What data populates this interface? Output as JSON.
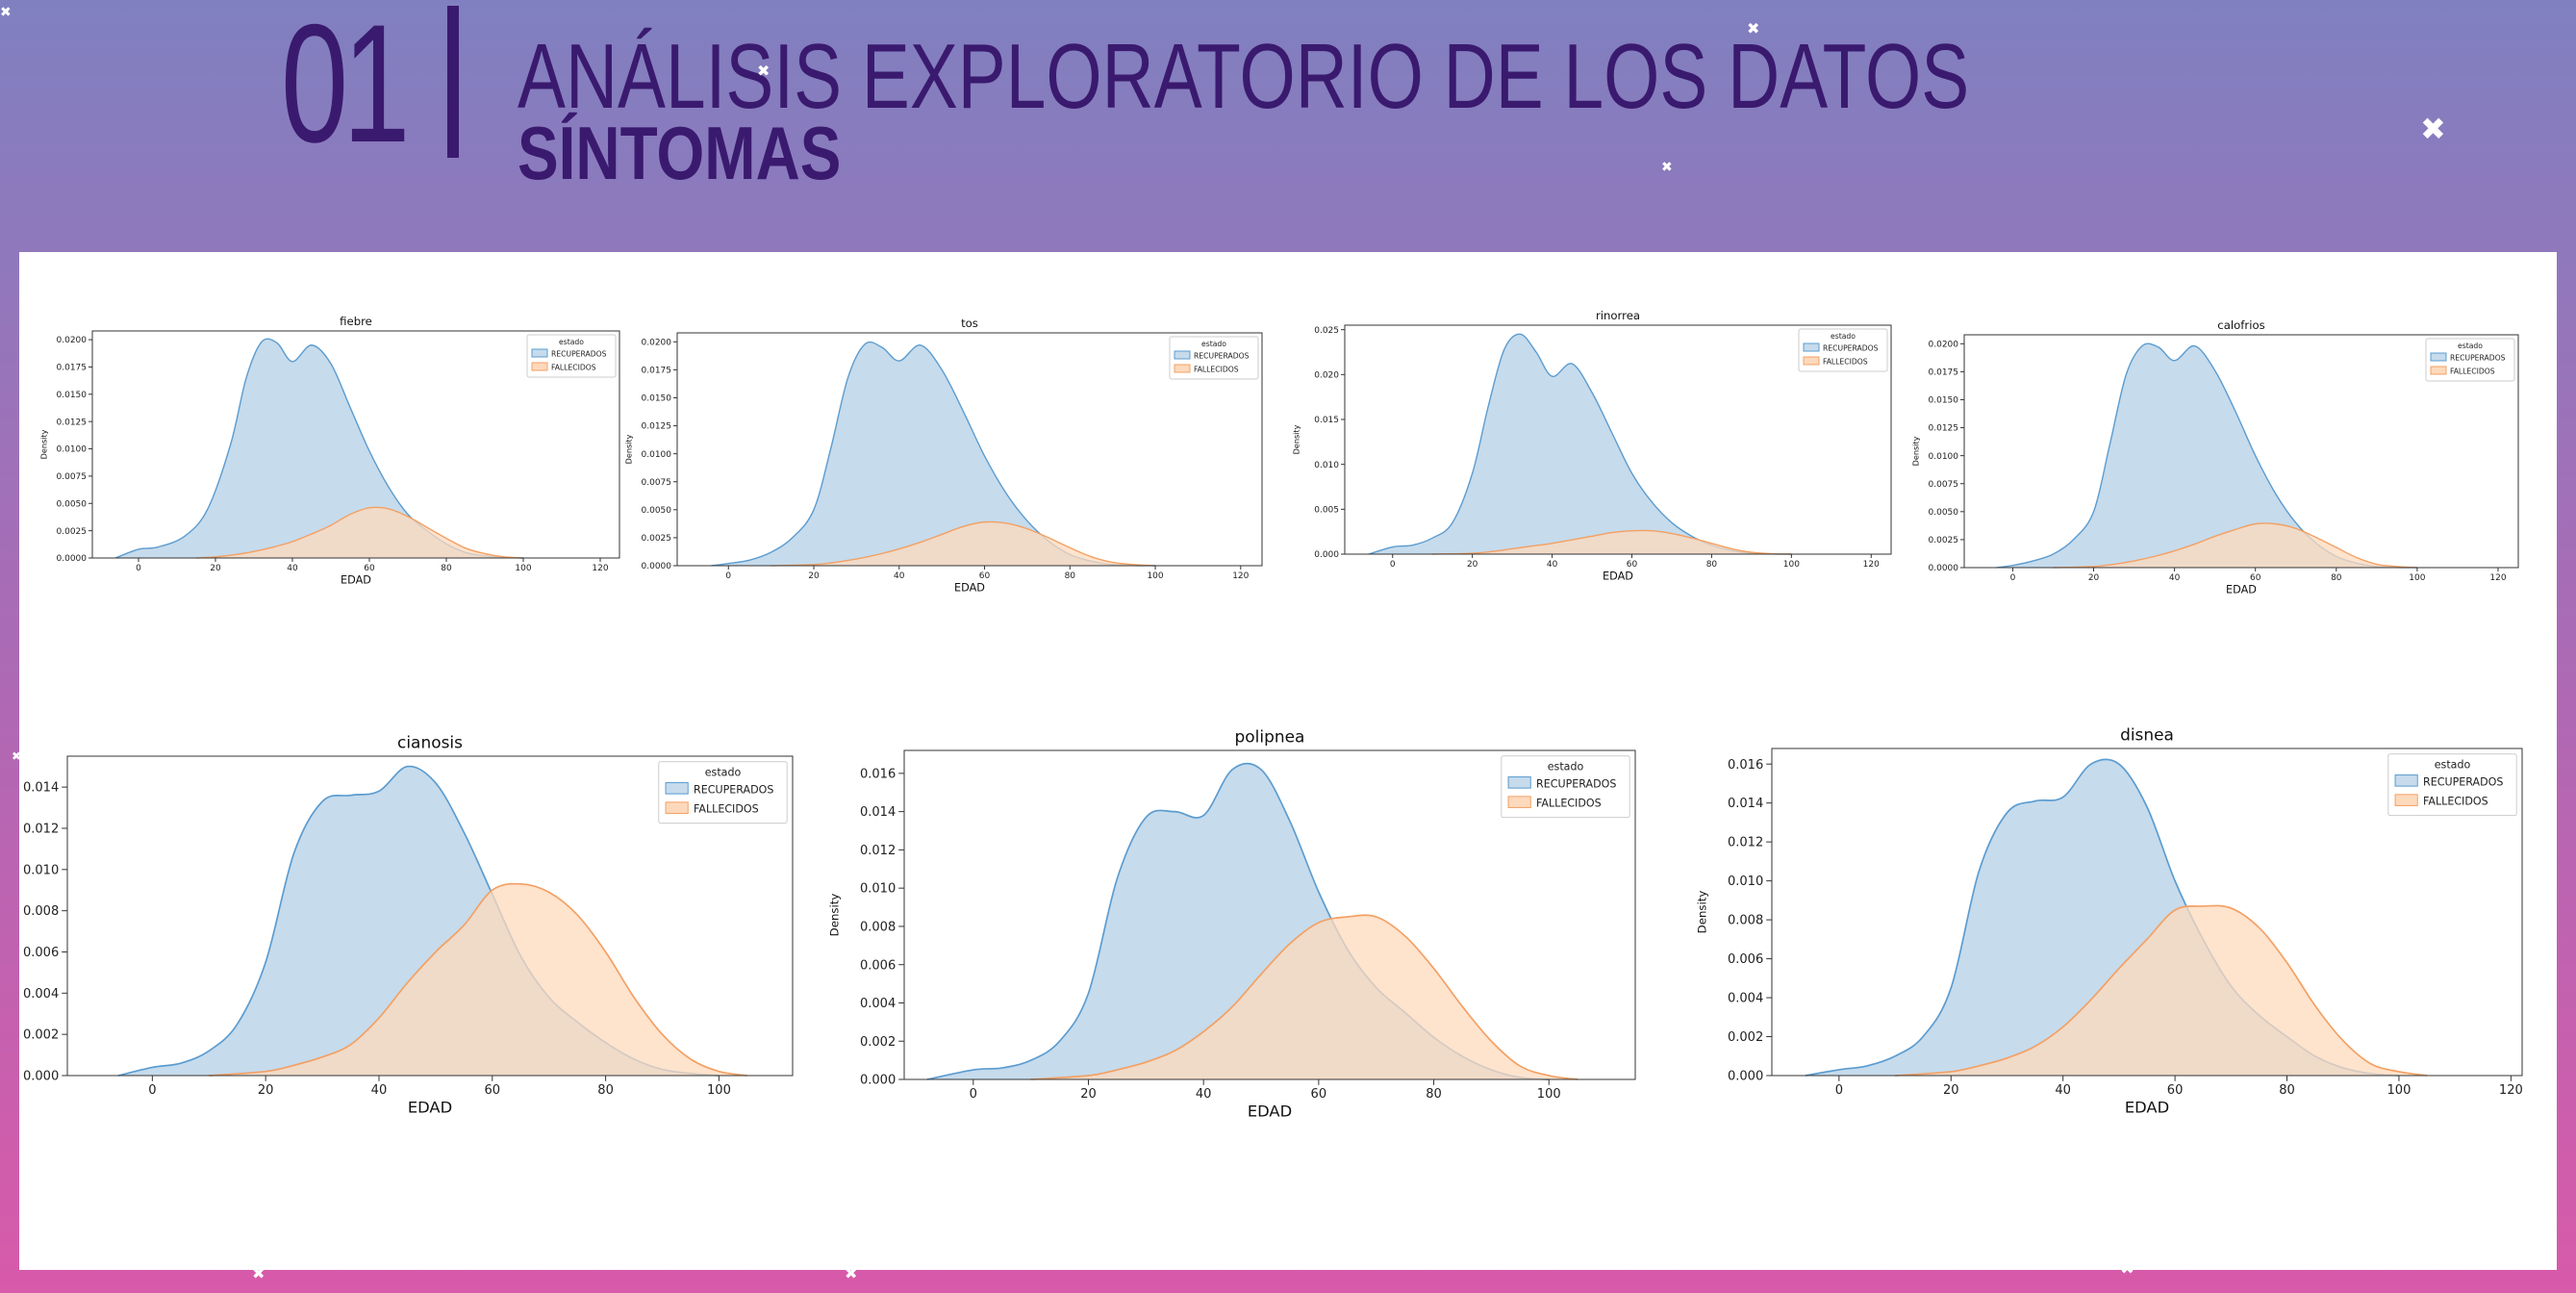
{
  "header": {
    "number": "01",
    "title": "ANÁLISIS EXPLORATORIO DE LOS DATOS",
    "subtitle": "SÍNTOMAS"
  },
  "colors": {
    "recuperados_fill": "#c6dbec",
    "recuperados_line": "#5b9cd0",
    "fallecidos_fill": "#fdd9bc",
    "fallecidos_line": "#f3a063",
    "overlap": "#c2bcb6",
    "title_color": "#3a1a6e"
  },
  "chart_data": [
    {
      "type": "area",
      "title": "fiebre",
      "xlabel": "EDAD",
      "ylabel": "Density",
      "xlim": [
        -12,
        125
      ],
      "ylim": [
        0,
        0.0208
      ],
      "xticks": [
        0,
        20,
        40,
        60,
        80,
        100,
        120
      ],
      "yticks": [
        0,
        0.0025,
        0.005,
        0.0075,
        0.01,
        0.0125,
        0.015,
        0.0175,
        0.02
      ],
      "ytick_labels": [
        "0.0000",
        "0.0025",
        "0.0050",
        "0.0075",
        "0.0100",
        "0.0125",
        "0.0150",
        "0.0175",
        "0.0200"
      ],
      "legend": {
        "title": "estado",
        "position": "top-right",
        "entries": [
          "RECUPERADOS",
          "FALLECIDOS"
        ]
      },
      "series": [
        {
          "name": "RECUPERADOS",
          "x": [
            -6,
            0,
            5,
            12,
            18,
            24,
            28,
            32,
            36,
            40,
            45,
            50,
            55,
            60,
            65,
            70,
            75,
            80,
            85,
            90,
            95,
            100
          ],
          "y": [
            0,
            0.0008,
            0.001,
            0.002,
            0.0045,
            0.0105,
            0.0165,
            0.0198,
            0.0197,
            0.018,
            0.0195,
            0.0178,
            0.0138,
            0.0098,
            0.0065,
            0.004,
            0.0025,
            0.0013,
            0.0005,
            0.0002,
            5e-05,
            0
          ]
        },
        {
          "name": "FALLECIDOS",
          "x": [
            15,
            20,
            25,
            30,
            35,
            40,
            45,
            50,
            55,
            60,
            65,
            70,
            75,
            80,
            85,
            90,
            95,
            100
          ],
          "y": [
            0,
            0.0001,
            0.0003,
            0.0006,
            0.001,
            0.0015,
            0.0022,
            0.003,
            0.004,
            0.0046,
            0.0045,
            0.0038,
            0.0028,
            0.0018,
            0.0009,
            0.0004,
            0.0001,
            0
          ]
        }
      ]
    },
    {
      "type": "area",
      "title": "tos",
      "xlabel": "EDAD",
      "ylabel": "Density",
      "xlim": [
        -12,
        125
      ],
      "ylim": [
        0,
        0.0208
      ],
      "xticks": [
        0,
        20,
        40,
        60,
        80,
        100,
        120
      ],
      "yticks": [
        0,
        0.0025,
        0.005,
        0.0075,
        0.01,
        0.0125,
        0.015,
        0.0175,
        0.02
      ],
      "ytick_labels": [
        "0.0000",
        "0.0025",
        "0.0050",
        "0.0075",
        "0.0100",
        "0.0125",
        "0.0150",
        "0.0175",
        "0.0200"
      ],
      "legend": {
        "title": "estado",
        "position": "top-right",
        "entries": [
          "RECUPERADOS",
          "FALLECIDOS"
        ]
      },
      "series": [
        {
          "name": "RECUPERADOS",
          "x": [
            -4,
            0,
            5,
            10,
            15,
            20,
            24,
            28,
            32,
            36,
            40,
            45,
            50,
            55,
            60,
            65,
            70,
            75,
            80,
            85,
            90,
            95,
            100
          ],
          "y": [
            0,
            0.0002,
            0.0005,
            0.0012,
            0.0025,
            0.005,
            0.0105,
            0.0168,
            0.0198,
            0.0195,
            0.0183,
            0.0197,
            0.0175,
            0.0138,
            0.0098,
            0.0065,
            0.004,
            0.0022,
            0.001,
            0.0004,
            0.0001,
            2e-05,
            0
          ]
        },
        {
          "name": "FALLECIDOS",
          "x": [
            10,
            20,
            25,
            30,
            35,
            40,
            45,
            50,
            55,
            60,
            65,
            70,
            75,
            80,
            85,
            90,
            95,
            100
          ],
          "y": [
            0,
            0.0001,
            0.0003,
            0.0006,
            0.001,
            0.0015,
            0.0021,
            0.0028,
            0.0035,
            0.0039,
            0.0038,
            0.0033,
            0.0025,
            0.0016,
            0.0008,
            0.0003,
            0.0001,
            0
          ]
        }
      ]
    },
    {
      "type": "area",
      "title": "rinorrea",
      "xlabel": "EDAD",
      "ylabel": "Density",
      "xlim": [
        -12,
        125
      ],
      "ylim": [
        0,
        0.0255
      ],
      "xticks": [
        0,
        20,
        40,
        60,
        80,
        100,
        120
      ],
      "yticks": [
        0,
        0.005,
        0.01,
        0.015,
        0.02,
        0.025
      ],
      "ytick_labels": [
        "0.000",
        "0.005",
        "0.010",
        "0.015",
        "0.020",
        "0.025"
      ],
      "legend": {
        "title": "estado",
        "position": "top-right",
        "entries": [
          "RECUPERADOS",
          "FALLECIDOS"
        ]
      },
      "series": [
        {
          "name": "RECUPERADOS",
          "x": [
            -6,
            0,
            5,
            10,
            15,
            20,
            24,
            28,
            32,
            36,
            40,
            45,
            50,
            55,
            60,
            65,
            70,
            75,
            80,
            85,
            90,
            95,
            100
          ],
          "y": [
            0,
            0.0008,
            0.001,
            0.0018,
            0.0035,
            0.009,
            0.0165,
            0.0228,
            0.0245,
            0.0225,
            0.0198,
            0.0212,
            0.018,
            0.0135,
            0.009,
            0.0058,
            0.0035,
            0.002,
            0.001,
            0.0004,
            0.0001,
            2e-05,
            0
          ]
        },
        {
          "name": "FALLECIDOS",
          "x": [
            10,
            20,
            25,
            30,
            35,
            40,
            45,
            50,
            55,
            60,
            65,
            70,
            75,
            80,
            85,
            90,
            95,
            100
          ],
          "y": [
            0,
            0.0001,
            0.0003,
            0.0006,
            0.0009,
            0.0012,
            0.0016,
            0.002,
            0.0024,
            0.0026,
            0.0026,
            0.0023,
            0.0018,
            0.0012,
            0.0006,
            0.0002,
            5e-05,
            0
          ]
        }
      ]
    },
    {
      "type": "area",
      "title": "calofrios",
      "xlabel": "EDAD",
      "ylabel": "Density",
      "xlim": [
        -12,
        125
      ],
      "ylim": [
        0,
        0.0208
      ],
      "xticks": [
        0,
        20,
        40,
        60,
        80,
        100,
        120
      ],
      "yticks": [
        0,
        0.0025,
        0.005,
        0.0075,
        0.01,
        0.0125,
        0.015,
        0.0175,
        0.02
      ],
      "ytick_labels": [
        "0.0000",
        "0.0025",
        "0.0050",
        "0.0075",
        "0.0100",
        "0.0125",
        "0.0150",
        "0.0175",
        "0.0200"
      ],
      "legend": {
        "title": "estado",
        "position": "top-right",
        "entries": [
          "RECUPERADOS",
          "FALLECIDOS"
        ]
      },
      "series": [
        {
          "name": "RECUPERADOS",
          "x": [
            -4,
            0,
            5,
            10,
            15,
            20,
            24,
            28,
            32,
            36,
            40,
            45,
            50,
            55,
            60,
            65,
            70,
            75,
            80,
            85,
            90,
            95,
            100
          ],
          "y": [
            0,
            0.0002,
            0.0006,
            0.0012,
            0.0025,
            0.005,
            0.011,
            0.0172,
            0.0198,
            0.0197,
            0.0185,
            0.0198,
            0.0176,
            0.014,
            0.01,
            0.0066,
            0.004,
            0.0022,
            0.001,
            0.0004,
            0.0001,
            2e-05,
            0
          ]
        },
        {
          "name": "FALLECIDOS",
          "x": [
            10,
            20,
            25,
            30,
            35,
            40,
            45,
            50,
            55,
            60,
            65,
            70,
            75,
            80,
            85,
            90,
            95,
            100
          ],
          "y": [
            0,
            0.0001,
            0.0003,
            0.0006,
            0.001,
            0.0015,
            0.0021,
            0.0028,
            0.0034,
            0.0039,
            0.0039,
            0.0035,
            0.0027,
            0.0018,
            0.0009,
            0.0003,
            0.0001,
            0
          ]
        }
      ]
    },
    {
      "type": "area",
      "title": "cianosis",
      "xlabel": "EDAD",
      "ylabel": "Density",
      "xlim": [
        -15,
        113
      ],
      "ylim": [
        0,
        0.0155
      ],
      "xticks": [
        0,
        20,
        40,
        60,
        80,
        100
      ],
      "yticks": [
        0,
        0.002,
        0.004,
        0.006,
        0.008,
        0.01,
        0.012,
        0.014
      ],
      "ytick_labels": [
        "0.000",
        "0.002",
        "0.004",
        "0.006",
        "0.008",
        "0.010",
        "0.012",
        "0.014"
      ],
      "legend": {
        "title": "estado",
        "position": "top-right",
        "entries": [
          "RECUPERADOS",
          "FALLECIDOS"
        ]
      },
      "series": [
        {
          "name": "RECUPERADOS",
          "x": [
            -6,
            0,
            5,
            10,
            15,
            20,
            25,
            30,
            35,
            40,
            45,
            50,
            55,
            60,
            65,
            70,
            75,
            80,
            85,
            90,
            95,
            100
          ],
          "y": [
            0,
            0.0004,
            0.0006,
            0.0012,
            0.0025,
            0.0055,
            0.0108,
            0.0133,
            0.0136,
            0.0138,
            0.015,
            0.0142,
            0.0118,
            0.0088,
            0.0058,
            0.0038,
            0.0026,
            0.0016,
            0.0008,
            0.0003,
            0.0001,
            0
          ]
        },
        {
          "name": "FALLECIDOS",
          "x": [
            10,
            20,
            25,
            30,
            35,
            40,
            45,
            50,
            55,
            60,
            65,
            70,
            75,
            80,
            85,
            90,
            95,
            100,
            105
          ],
          "y": [
            0,
            0.0002,
            0.0005,
            0.0009,
            0.0015,
            0.0028,
            0.0045,
            0.006,
            0.0073,
            0.009,
            0.0093,
            0.0089,
            0.0078,
            0.006,
            0.0038,
            0.002,
            0.0008,
            0.0002,
            0
          ]
        }
      ]
    },
    {
      "type": "area",
      "title": "polipnea",
      "xlabel": "EDAD",
      "ylabel": "Density",
      "xlim": [
        -12,
        115
      ],
      "ylim": [
        0,
        0.0172
      ],
      "xticks": [
        0,
        20,
        40,
        60,
        80,
        100
      ],
      "yticks": [
        0,
        0.002,
        0.004,
        0.006,
        0.008,
        0.01,
        0.012,
        0.014,
        0.016
      ],
      "ytick_labels": [
        "0.000",
        "0.002",
        "0.004",
        "0.006",
        "0.008",
        "0.010",
        "0.012",
        "0.014",
        "0.016"
      ],
      "legend": {
        "title": "estado",
        "position": "top-right",
        "entries": [
          "RECUPERADOS",
          "FALLECIDOS"
        ]
      },
      "series": [
        {
          "name": "RECUPERADOS",
          "x": [
            -8,
            0,
            5,
            10,
            15,
            20,
            25,
            30,
            35,
            40,
            45,
            50,
            55,
            60,
            65,
            70,
            75,
            80,
            85,
            90,
            95,
            100
          ],
          "y": [
            0,
            0.0005,
            0.0006,
            0.001,
            0.002,
            0.0045,
            0.0105,
            0.0137,
            0.014,
            0.0138,
            0.0162,
            0.0162,
            0.0135,
            0.0098,
            0.0068,
            0.0048,
            0.0035,
            0.0022,
            0.0012,
            0.0005,
            0.0001,
            0
          ]
        },
        {
          "name": "FALLECIDOS",
          "x": [
            10,
            20,
            25,
            30,
            35,
            40,
            45,
            50,
            55,
            60,
            65,
            70,
            75,
            80,
            85,
            90,
            95,
            100,
            105
          ],
          "y": [
            0,
            0.0002,
            0.0005,
            0.0009,
            0.0015,
            0.0025,
            0.0038,
            0.0055,
            0.0071,
            0.0082,
            0.0085,
            0.0085,
            0.0075,
            0.0058,
            0.0038,
            0.002,
            0.0007,
            0.0002,
            0
          ]
        }
      ]
    },
    {
      "type": "area",
      "title": "disnea",
      "xlabel": "EDAD",
      "ylabel": "Density",
      "xlim": [
        -12,
        122
      ],
      "ylim": [
        0,
        0.0168
      ],
      "xticks": [
        0,
        20,
        40,
        60,
        80,
        100,
        120
      ],
      "yticks": [
        0,
        0.002,
        0.004,
        0.006,
        0.008,
        0.01,
        0.012,
        0.014,
        0.016
      ],
      "ytick_labels": [
        "0.000",
        "0.002",
        "0.004",
        "0.006",
        "0.008",
        "0.010",
        "0.012",
        "0.014",
        "0.016"
      ],
      "legend": {
        "title": "estado",
        "position": "top-right",
        "entries": [
          "RECUPERADOS",
          "FALLECIDOS"
        ]
      },
      "series": [
        {
          "name": "RECUPERADOS",
          "x": [
            -6,
            0,
            5,
            10,
            15,
            20,
            25,
            30,
            35,
            40,
            45,
            50,
            55,
            60,
            65,
            70,
            75,
            80,
            85,
            90,
            95,
            100
          ],
          "y": [
            0,
            0.0003,
            0.0005,
            0.001,
            0.002,
            0.0045,
            0.0105,
            0.0135,
            0.0141,
            0.0143,
            0.016,
            0.016,
            0.0138,
            0.01,
            0.007,
            0.0046,
            0.0031,
            0.002,
            0.001,
            0.0004,
            0.0001,
            0
          ]
        },
        {
          "name": "FALLECIDOS",
          "x": [
            10,
            20,
            25,
            30,
            35,
            40,
            45,
            50,
            55,
            60,
            65,
            70,
            75,
            80,
            85,
            90,
            95,
            100,
            105
          ],
          "y": [
            0,
            0.0002,
            0.0005,
            0.0009,
            0.0015,
            0.0025,
            0.0039,
            0.0055,
            0.007,
            0.0085,
            0.0087,
            0.0086,
            0.0076,
            0.0058,
            0.0036,
            0.0018,
            0.0006,
            0.0002,
            0
          ]
        }
      ]
    }
  ]
}
